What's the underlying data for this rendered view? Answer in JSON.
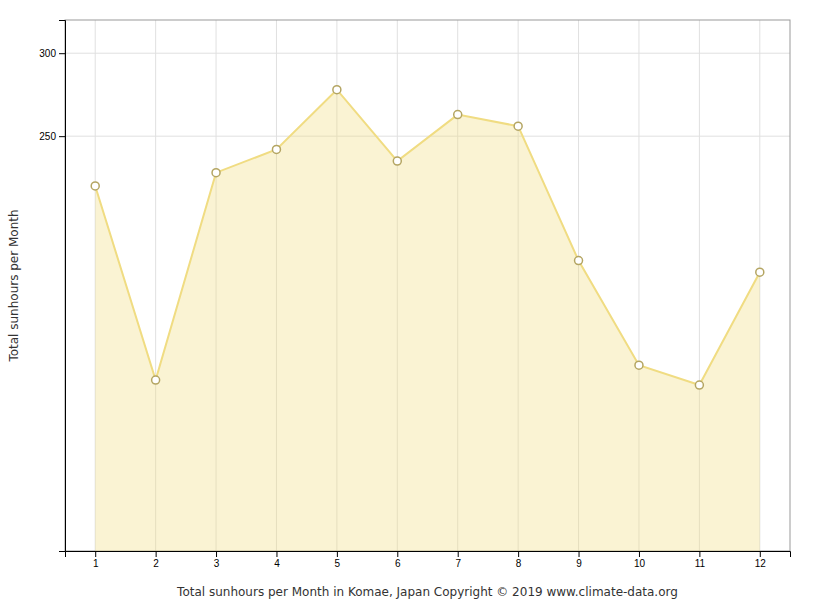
{
  "chart_data": {
    "type": "area",
    "xlabel": "Total sunhours per Month in Komae, Japan Copyright © 2019 www.climate-data.org",
    "ylabel": "Total sunhours per Month",
    "x": [
      1,
      2,
      3,
      4,
      5,
      6,
      7,
      8,
      9,
      10,
      11,
      12
    ],
    "values": [
      220,
      103,
      228,
      242,
      278,
      235,
      263,
      256,
      175,
      112,
      100,
      168
    ],
    "color": "#F0DC82",
    "marker": "circle",
    "xlim": [
      0.5,
      12.5
    ],
    "xticks": [
      1,
      2,
      3,
      4,
      5,
      6,
      7,
      8,
      9,
      10,
      11,
      12
    ],
    "ylim": [
      0,
      320
    ],
    "yticks": [
      250,
      300
    ],
    "grid": true
  }
}
